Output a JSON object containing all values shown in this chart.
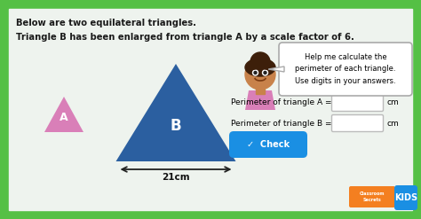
{
  "panel_color": "#eef3ee",
  "title_line1": "Below are two equilateral triangles.",
  "title_line2": "Triangle B has been enlarged from triangle A by a scale factor of 6.",
  "triangle_a_color": "#d97fb8",
  "triangle_b_color": "#2b5fa0",
  "label_a": "A",
  "label_b": "B",
  "speech_text": "Help me calculate the\nperimeter of each triangle.\nUse digits in your answers.",
  "measurement": "21cm",
  "perimeter_a_label": "Perimeter of triangle A =",
  "perimeter_b_label": "Perimeter of triangle B =",
  "cm_unit": "cm",
  "check_btn_color": "#1a8fe3",
  "check_btn_text": "✓  Check",
  "outer_border_color": "#55c045",
  "face_color": "#c8824a",
  "hair_color": "#3d1f0a",
  "shirt_color": "#d97fb8"
}
